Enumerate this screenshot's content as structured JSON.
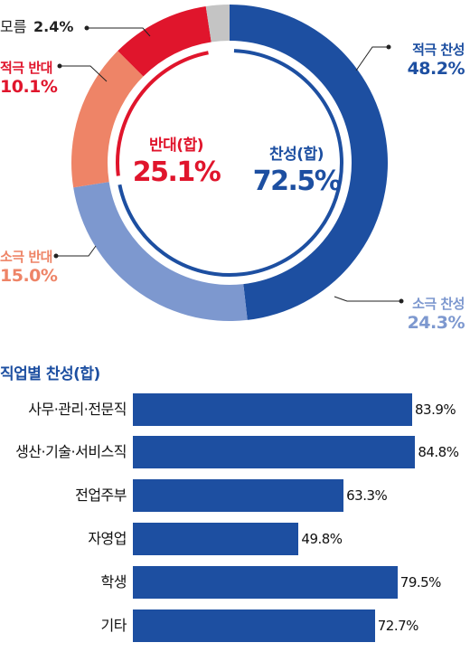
{
  "colors": {
    "strong_for": "#1d4fa1",
    "mild_for": "#7d98cf",
    "mild_against": "#ee8467",
    "strong_against": "#e0152c",
    "unknown": "#c4c4c4",
    "bar": "#1d4fa1"
  },
  "chart_data": [
    {
      "type": "pie",
      "style": "donut",
      "slices": [
        {
          "label": "적극 찬성",
          "value": 48.2,
          "value_label": "48.2%",
          "color": "#1d4fa1"
        },
        {
          "label": "소극 찬성",
          "value": 24.3,
          "value_label": "24.3%",
          "color": "#7d98cf"
        },
        {
          "label": "소극 반대",
          "value": 15.0,
          "value_label": "15.0%",
          "color": "#ee8467"
        },
        {
          "label": "적극 반대",
          "value": 10.1,
          "value_label": "10.1%",
          "color": "#e0152c"
        },
        {
          "label": "모름",
          "value": 2.4,
          "value_label": "2.4%",
          "color": "#c4c4c4"
        }
      ],
      "center": {
        "for": {
          "label": "찬성(합)",
          "value": 72.5,
          "value_label": "72.5%"
        },
        "against": {
          "label": "반대(합)",
          "value": 25.1,
          "value_label": "25.1%"
        }
      }
    },
    {
      "type": "bar",
      "orientation": "horizontal",
      "title": "직업별 찬성(합)",
      "categories": [
        "사무·관리·전문직",
        "생산·기술·서비스직",
        "전업주부",
        "자영업",
        "학생",
        "기타"
      ],
      "values": [
        83.9,
        84.8,
        63.3,
        49.8,
        79.5,
        72.7
      ],
      "value_labels": [
        "83.9%",
        "84.8%",
        "63.3%",
        "49.8%",
        "79.5%",
        "72.7%"
      ],
      "color": "#1d4fa1"
    }
  ]
}
